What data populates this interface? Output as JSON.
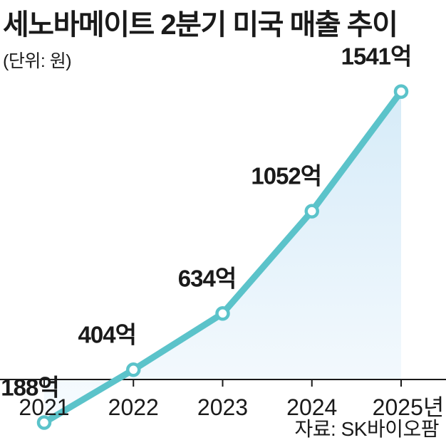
{
  "title": "세노바메이트 2분기 미국 매출 추이",
  "unit_note": "(단위: 원)",
  "source": "자료: SK바이오팜",
  "colors": {
    "line": "#5bc3ca",
    "marker_fill": "#ffffff",
    "area_top": "#d6ebf8",
    "area_bottom": "#f7fbfe",
    "axis": "#1a1a1a"
  },
  "chart_data": {
    "type": "line",
    "title": "세노바메이트 2분기 미국 매출 추이",
    "xlabel": "",
    "ylabel": "",
    "categories": [
      "2021",
      "2022",
      "2023",
      "2024",
      "2025년"
    ],
    "series": [
      {
        "values": [
          188,
          404,
          634,
          1052,
          1541
        ],
        "labels": [
          "188억",
          "404억",
          "634억",
          "1052억",
          "1541억"
        ]
      }
    ],
    "ylim": [
      0,
      1541
    ],
    "grid": false,
    "area_fill": true,
    "markers": "hollow-circle"
  }
}
